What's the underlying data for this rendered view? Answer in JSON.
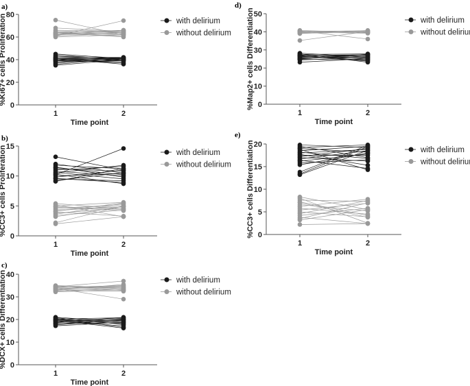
{
  "colors": {
    "with_delirium": "#1a1a1a",
    "without_delirium": "#999999",
    "axis": "#555555"
  },
  "chart_data": [
    {
      "panel": "a)",
      "type": "line",
      "ylabel": "%Ki67+ cells Proliferation",
      "xlabel": "Time point",
      "x": [
        1,
        2
      ],
      "xticks": [
        "1",
        "2"
      ],
      "ylim": [
        0,
        80
      ],
      "yticks": [
        0,
        20,
        40,
        60,
        80
      ],
      "grid": false,
      "legend": "right",
      "series": [
        {
          "name": "with delirium",
          "pairs": [
            [
              35,
              40
            ],
            [
              36,
              41
            ],
            [
              38,
              39
            ],
            [
              39,
              42
            ],
            [
              40,
              37
            ],
            [
              40,
              41
            ],
            [
              41,
              40
            ],
            [
              41,
              36
            ],
            [
              42,
              40
            ],
            [
              42,
              42
            ],
            [
              43,
              41
            ],
            [
              38,
              40
            ],
            [
              39,
              38
            ],
            [
              44,
              40
            ],
            [
              45,
              41
            ],
            [
              37,
              42
            ],
            [
              40,
              39
            ],
            [
              41,
              41
            ]
          ]
        },
        {
          "name": "without delirium",
          "pairs": [
            [
              75,
              62
            ],
            [
              68,
              65
            ],
            [
              61,
              74.5
            ],
            [
              62,
              64
            ],
            [
              63,
              61
            ],
            [
              63,
              65
            ],
            [
              64,
              63
            ],
            [
              64,
              60
            ],
            [
              62,
              66
            ],
            [
              65,
              64
            ],
            [
              60,
              62
            ],
            [
              61,
              63
            ],
            [
              66,
              65
            ],
            [
              63,
              62
            ],
            [
              62,
              64
            ],
            [
              64,
              66
            ]
          ]
        }
      ]
    },
    {
      "panel": "b)",
      "type": "line",
      "ylabel": "%CC3+ cells Proliferation",
      "xlabel": "Time point",
      "x": [
        1,
        2
      ],
      "xticks": [
        "1",
        "2"
      ],
      "ylim": [
        0,
        15
      ],
      "yticks": [
        0,
        5,
        10,
        15
      ],
      "grid": false,
      "legend": "right",
      "series": [
        {
          "name": "with delirium",
          "pairs": [
            [
              13.2,
              11
            ],
            [
              10.2,
              14.6
            ],
            [
              12,
              10.5
            ],
            [
              11.8,
              11.2
            ],
            [
              11.5,
              9.8
            ],
            [
              11.2,
              10.8
            ],
            [
              11,
              11.6
            ],
            [
              10.8,
              10
            ],
            [
              10.5,
              11.8
            ],
            [
              10.3,
              8.7
            ],
            [
              10,
              10.4
            ],
            [
              9.8,
              11
            ],
            [
              9.5,
              9.2
            ],
            [
              9.2,
              10.6
            ],
            [
              9.1,
              11.3
            ],
            [
              10.6,
              9.5
            ],
            [
              11.4,
              10.2
            ],
            [
              9.6,
              8.9
            ]
          ]
        },
        {
          "name": "without delirium",
          "pairs": [
            [
              5.4,
              4.5
            ],
            [
              5.2,
              3.2
            ],
            [
              5,
              5.6
            ],
            [
              4.8,
              4.2
            ],
            [
              4.6,
              5.2
            ],
            [
              4.4,
              4.8
            ],
            [
              4.2,
              5
            ],
            [
              4,
              3.3
            ],
            [
              3.8,
              4.6
            ],
            [
              3.6,
              5.4
            ],
            [
              3.4,
              4.3
            ],
            [
              3.2,
              4.9
            ],
            [
              2.2,
              5
            ],
            [
              2,
              3.2
            ],
            [
              4.9,
              4.4
            ],
            [
              4.1,
              5.5
            ]
          ]
        }
      ]
    },
    {
      "panel": "c)",
      "type": "line",
      "ylabel": "%DCX+ cells Differentiation",
      "xlabel": "Time point",
      "x": [
        1,
        2
      ],
      "xticks": [
        "1",
        "2"
      ],
      "ylim": [
        0,
        40
      ],
      "yticks": [
        0,
        10,
        20,
        30,
        40
      ],
      "grid": false,
      "legend": "right",
      "series": [
        {
          "name": "with delirium",
          "pairs": [
            [
              21,
              19
            ],
            [
              20.5,
              16.5
            ],
            [
              20.2,
              20.8
            ],
            [
              20,
              18
            ],
            [
              19.8,
              20.2
            ],
            [
              19.5,
              19.5
            ],
            [
              19.2,
              17.2
            ],
            [
              19,
              20.5
            ],
            [
              18.8,
              19
            ],
            [
              18.5,
              21
            ],
            [
              18.2,
              18.5
            ],
            [
              18,
              20
            ],
            [
              17.6,
              19.8
            ],
            [
              17.2,
              18.8
            ],
            [
              20.8,
              17.8
            ],
            [
              19.6,
              16.2
            ]
          ]
        },
        {
          "name": "without delirium",
          "pairs": [
            [
              35,
              34
            ],
            [
              34.8,
              32.8
            ],
            [
              34.5,
              37
            ],
            [
              34.2,
              35
            ],
            [
              34,
              33.5
            ],
            [
              33.8,
              29
            ],
            [
              33.5,
              34.5
            ],
            [
              33.2,
              33
            ],
            [
              33,
              35.5
            ],
            [
              32.8,
              32.5
            ],
            [
              32.5,
              34
            ],
            [
              32.2,
              33.2
            ],
            [
              33.6,
              34.8
            ],
            [
              34.6,
              33.8
            ]
          ]
        }
      ]
    },
    {
      "panel": "d)",
      "type": "line",
      "ylabel": "%Map2+ cells Differentiation",
      "xlabel": "Time point",
      "x": [
        1,
        2
      ],
      "xticks": [
        "1",
        "2"
      ],
      "ylim": [
        0,
        50
      ],
      "yticks": [
        0,
        10,
        20,
        30,
        40,
        50
      ],
      "grid": false,
      "legend": "right",
      "series": [
        {
          "name": "with delirium",
          "pairs": [
            [
              28.2,
              26
            ],
            [
              27.8,
              23.2
            ],
            [
              27.5,
              27.8
            ],
            [
              27.2,
              25
            ],
            [
              27,
              27.3
            ],
            [
              26.7,
              24.2
            ],
            [
              26.4,
              26.8
            ],
            [
              26.1,
              27.5
            ],
            [
              25.8,
              25.5
            ],
            [
              25.5,
              26.3
            ],
            [
              25.2,
              27
            ],
            [
              24.8,
              24.6
            ],
            [
              24.4,
              26
            ],
            [
              23.2,
              25.2
            ],
            [
              26.9,
              23.8
            ],
            [
              25,
              27.6
            ]
          ]
        },
        {
          "name": "without delirium",
          "pairs": [
            [
              40.8,
              39.5
            ],
            [
              40.5,
              36
            ],
            [
              40.2,
              40.6
            ],
            [
              40,
              40
            ],
            [
              39.8,
              39.2
            ],
            [
              39.5,
              40.3
            ],
            [
              39.2,
              39.8
            ],
            [
              39,
              40.8
            ],
            [
              35.2,
              40.2
            ],
            [
              40.4,
              39.6
            ]
          ]
        }
      ]
    },
    {
      "panel": "e)",
      "type": "line",
      "ylabel": "%CC3+ cells Differentiation",
      "xlabel": "Time point",
      "x": [
        1,
        2
      ],
      "xticks": [
        "1",
        "2"
      ],
      "ylim": [
        0,
        20
      ],
      "yticks": [
        0,
        5,
        10,
        15,
        20
      ],
      "grid": false,
      "legend": "right",
      "series": [
        {
          "name": "with delirium",
          "pairs": [
            [
              19.8,
              19.2
            ],
            [
              19.5,
              17
            ],
            [
              19.2,
              19.8
            ],
            [
              19,
              18.2
            ],
            [
              18.8,
              14.3
            ],
            [
              18.5,
              19.5
            ],
            [
              18.2,
              16.8
            ],
            [
              18,
              18.8
            ],
            [
              17.7,
              15.3
            ],
            [
              17.5,
              17.5
            ],
            [
              17.2,
              19
            ],
            [
              17,
              16.2
            ],
            [
              16.7,
              18.5
            ],
            [
              16.4,
              14.6
            ],
            [
              16.2,
              17.8
            ],
            [
              15.8,
              16.5
            ],
            [
              15.4,
              18
            ],
            [
              13.8,
              19.7
            ],
            [
              13.4,
              19.4
            ],
            [
              13.2,
              18.6
            ]
          ]
        },
        {
          "name": "without delirium",
          "pairs": [
            [
              8.3,
              5.5
            ],
            [
              8,
              2.5
            ],
            [
              7.6,
              7.3
            ],
            [
              7.2,
              4.2
            ],
            [
              7,
              3.8
            ],
            [
              6.6,
              5.2
            ],
            [
              6.2,
              7.8
            ],
            [
              5.8,
              4.5
            ],
            [
              5.4,
              6.9
            ],
            [
              5,
              3.9
            ],
            [
              4.6,
              7.5
            ],
            [
              4.2,
              5.8
            ],
            [
              3.8,
              2.4
            ],
            [
              3.5,
              7
            ],
            [
              3.2,
              5.5
            ],
            [
              2.2,
              2.4
            ]
          ]
        }
      ]
    }
  ]
}
